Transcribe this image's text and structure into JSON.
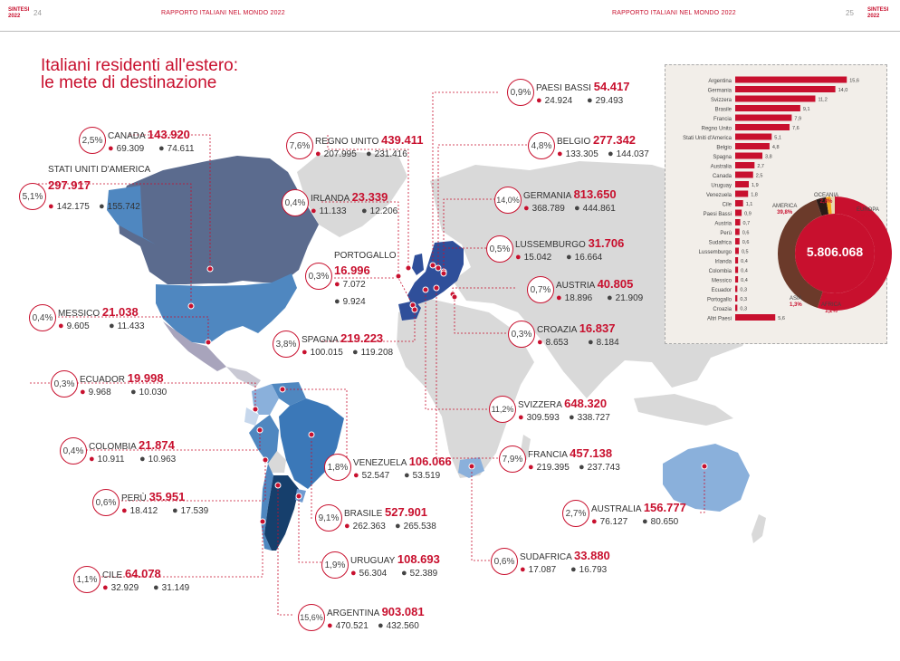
{
  "header": {
    "sintesi": "SINTESI",
    "year": "2022",
    "page_left": "24",
    "page_right": "25",
    "running_title": "RAPPORTO ITALIANI NEL MONDO 2022"
  },
  "title": {
    "line1": "Italiani residenti all'estero:",
    "line2": "le mete di destinazione"
  },
  "countries": [
    {
      "name": "CANADA",
      "pct": "2,5%",
      "total": "143.920",
      "f": "69.309",
      "m": "74.611"
    },
    {
      "name": "STATI UNITI D'AMERICA",
      "pct": "5,1%",
      "total": "297.917",
      "f": "142.175",
      "m": "155.742"
    },
    {
      "name": "MESSICO",
      "pct": "0,4%",
      "total": "21.038",
      "f": "9.605",
      "m": "11.433"
    },
    {
      "name": "ECUADOR",
      "pct": "0,3%",
      "total": "19.998",
      "f": "9.968",
      "m": "10.030"
    },
    {
      "name": "COLOMBIA",
      "pct": "0,4%",
      "total": "21.874",
      "f": "10.911",
      "m": "10.963"
    },
    {
      "name": "PERÙ",
      "pct": "0,6%",
      "total": "35.951",
      "f": "18.412",
      "m": "17.539"
    },
    {
      "name": "CILE",
      "pct": "1,1%",
      "total": "64.078",
      "f": "32.929",
      "m": "31.149"
    },
    {
      "name": "REGNO UNITO",
      "pct": "7,6%",
      "total": "439.411",
      "f": "207.995",
      "m": "231.416"
    },
    {
      "name": "IRLANDA",
      "pct": "0,4%",
      "total": "23.339",
      "f": "11.133",
      "m": "12.206"
    },
    {
      "name": "PORTOGALLO",
      "pct": "0,3%",
      "total": "16.996",
      "f": "7.072",
      "m": "9.924"
    },
    {
      "name": "SPAGNA",
      "pct": "3,8%",
      "total": "219.223",
      "f": "100.015",
      "m": "119.208"
    },
    {
      "name": "VENEZUELA",
      "pct": "1,8%",
      "total": "106.066",
      "f": "52.547",
      "m": "53.519"
    },
    {
      "name": "BRASILE",
      "pct": "9,1%",
      "total": "527.901",
      "f": "262.363",
      "m": "265.538"
    },
    {
      "name": "URUGUAY",
      "pct": "1,9%",
      "total": "108.693",
      "f": "56.304",
      "m": "52.389"
    },
    {
      "name": "ARGENTINA",
      "pct": "15,6%",
      "total": "903.081",
      "f": "470.521",
      "m": "432.560"
    },
    {
      "name": "PAESI BASSI",
      "pct": "0,9%",
      "total": "54.417",
      "f": "24.924",
      "m": "29.493"
    },
    {
      "name": "BELGIO",
      "pct": "4,8%",
      "total": "277.342",
      "f": "133.305",
      "m": "144.037"
    },
    {
      "name": "GERMANIA",
      "pct": "14,0%",
      "total": "813.650",
      "f": "368.789",
      "m": "444.861"
    },
    {
      "name": "LUSSEMBURGO",
      "pct": "0,5%",
      "total": "31.706",
      "f": "15.042",
      "m": "16.664"
    },
    {
      "name": "AUSTRIA",
      "pct": "0,7%",
      "total": "40.805",
      "f": "18.896",
      "m": "21.909"
    },
    {
      "name": "CROAZIA",
      "pct": "0,3%",
      "total": "16.837",
      "f": "8.653",
      "m": "8.184"
    },
    {
      "name": "SVIZZERA",
      "pct": "11,2%",
      "total": "648.320",
      "f": "309.593",
      "m": "338.727"
    },
    {
      "name": "FRANCIA",
      "pct": "7,9%",
      "total": "457.138",
      "f": "219.395",
      "m": "237.743"
    },
    {
      "name": "SUDAFRICA",
      "pct": "0,6%",
      "total": "33.880",
      "f": "17.087",
      "m": "16.793"
    },
    {
      "name": "AUSTRALIA",
      "pct": "2,7%",
      "total": "156.777",
      "f": "76.127",
      "m": "80.650"
    }
  ],
  "chart_data": [
    {
      "type": "bar",
      "orientation": "horizontal",
      "categories": [
        "Argentina",
        "Germania",
        "Svizzera",
        "Brasile",
        "Francia",
        "Regno Unito",
        "Stati Uniti d'America",
        "Belgio",
        "Spagna",
        "Australia",
        "Canada",
        "Uruguay",
        "Venezuela",
        "Cile",
        "Paesi Bassi",
        "Austria",
        "Perù",
        "Sudafrica",
        "Lussemburgo",
        "Irlanda",
        "Colombia",
        "Messico",
        "Ecuador",
        "Portogallo",
        "Croazia",
        "Altri Paesi"
      ],
      "values": [
        15.6,
        14.0,
        11.2,
        9.1,
        7.9,
        7.6,
        5.1,
        4.8,
        3.8,
        2.7,
        2.5,
        1.9,
        1.8,
        1.1,
        0.9,
        0.7,
        0.6,
        0.6,
        0.5,
        0.4,
        0.4,
        0.4,
        0.3,
        0.3,
        0.3,
        5.6
      ],
      "value_labels": [
        "15,6",
        "14,0",
        "11,2",
        "9,1",
        "7,9",
        "7,6",
        "5,1",
        "4,8",
        "3,8",
        "2,7",
        "2,5",
        "1,9",
        "1,8",
        "1,1",
        "0,9",
        "0,7",
        "0,6",
        "0,6",
        "0,5",
        "0,4",
        "0,4",
        "0,4",
        "0,3",
        "0,3",
        "0,3",
        "5,6"
      ],
      "color": "#c8102e"
    },
    {
      "type": "pie",
      "donut": true,
      "total_label": "5.806.068",
      "slices": [
        {
          "name": "EUROPA",
          "value": 54.9,
          "label": "54,9%",
          "color": "#c8102e"
        },
        {
          "name": "AMERICA",
          "value": 39.8,
          "label": "39,8%",
          "color": "#6b3a2a"
        },
        {
          "name": "OCEANIA",
          "value": 2.8,
          "label": "2,8%",
          "color": "#2a1a16"
        },
        {
          "name": "ASIA",
          "value": 1.3,
          "label": "1,3%",
          "color": "#f4a81d"
        },
        {
          "name": "AFRICA",
          "value": 1.2,
          "label": "1,2%",
          "color": "#e8d9b0"
        }
      ]
    }
  ]
}
